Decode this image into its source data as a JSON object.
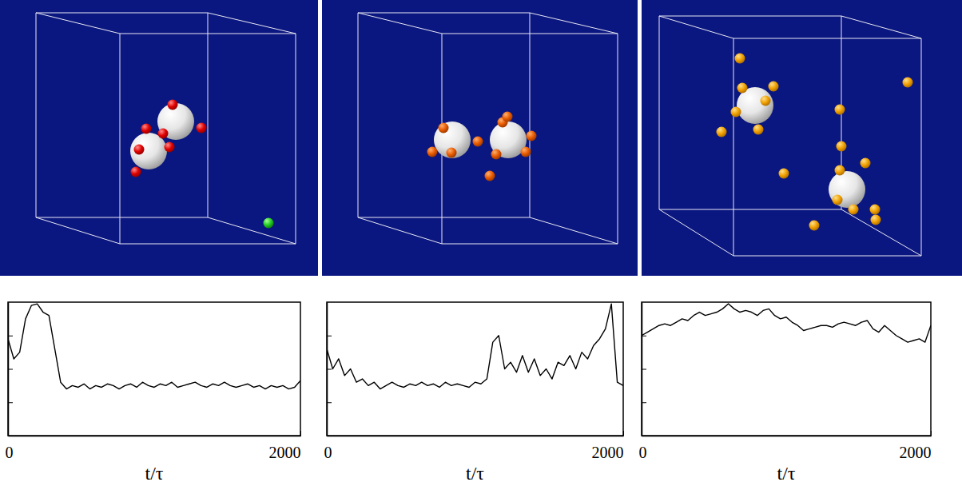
{
  "chart_data": [
    {
      "type": "line",
      "x_label": "t/τ",
      "x": [
        0,
        40,
        80,
        120,
        160,
        200,
        240,
        280,
        320,
        360,
        400,
        440,
        480,
        520,
        560,
        600,
        640,
        680,
        720,
        760,
        800,
        840,
        880,
        920,
        960,
        1000,
        1040,
        1080,
        1120,
        1160,
        1200,
        1240,
        1280,
        1320,
        1360,
        1400,
        1440,
        1480,
        1520,
        1560,
        1600,
        1640,
        1680,
        1720,
        1760,
        1800,
        1840,
        1880,
        1920,
        1960,
        2000
      ],
      "series": [
        {
          "color": "#000000",
          "values": [
            2.9,
            2.3,
            2.5,
            3.5,
            3.9,
            3.95,
            3.7,
            3.6,
            2.6,
            1.6,
            1.4,
            1.5,
            1.45,
            1.55,
            1.4,
            1.5,
            1.45,
            1.55,
            1.5,
            1.4,
            1.5,
            1.55,
            1.45,
            1.6,
            1.5,
            1.45,
            1.55,
            1.5,
            1.6,
            1.45,
            1.5,
            1.55,
            1.6,
            1.5,
            1.45,
            1.55,
            1.5,
            1.6,
            1.5,
            1.45,
            1.5,
            1.55,
            1.45,
            1.5,
            1.4,
            1.5,
            1.45,
            1.5,
            1.4,
            1.45,
            1.65
          ]
        }
      ],
      "xlim": [
        0,
        2000
      ],
      "xticks": [
        0,
        2000
      ],
      "ylim": [
        0,
        4
      ],
      "yticks": [
        1,
        2,
        3
      ],
      "tick_labels": "x"
    },
    {
      "type": "line",
      "x_label": "t/τ",
      "x": [
        0,
        40,
        80,
        120,
        160,
        200,
        240,
        280,
        320,
        360,
        400,
        440,
        480,
        520,
        560,
        600,
        640,
        680,
        720,
        760,
        800,
        840,
        880,
        920,
        960,
        1000,
        1040,
        1080,
        1120,
        1160,
        1200,
        1240,
        1280,
        1320,
        1360,
        1400,
        1440,
        1480,
        1520,
        1560,
        1600,
        1640,
        1680,
        1720,
        1760,
        1800,
        1840,
        1880,
        1920,
        1960,
        2000
      ],
      "series": [
        {
          "color": "#000000",
          "values": [
            2.6,
            2.0,
            2.3,
            1.8,
            2.0,
            1.6,
            1.7,
            1.5,
            1.6,
            1.4,
            1.5,
            1.6,
            1.5,
            1.45,
            1.55,
            1.5,
            1.6,
            1.5,
            1.55,
            1.45,
            1.6,
            1.5,
            1.55,
            1.5,
            1.45,
            1.6,
            1.55,
            1.7,
            2.8,
            3.0,
            2.0,
            2.2,
            1.9,
            2.4,
            1.9,
            2.3,
            1.8,
            2.0,
            1.7,
            2.2,
            2.1,
            2.4,
            2.0,
            2.5,
            2.3,
            2.7,
            2.9,
            3.2,
            3.95,
            1.6,
            1.5
          ]
        }
      ],
      "xlim": [
        0,
        2000
      ],
      "xticks": [
        0,
        2000
      ],
      "ylim": [
        0,
        4
      ],
      "yticks": [
        1,
        2,
        3
      ],
      "tick_labels": "x"
    },
    {
      "type": "line",
      "x_label": "t/τ",
      "x": [
        0,
        40,
        80,
        120,
        160,
        200,
        240,
        280,
        320,
        360,
        400,
        440,
        480,
        520,
        560,
        600,
        640,
        680,
        720,
        760,
        800,
        840,
        880,
        920,
        960,
        1000,
        1040,
        1080,
        1120,
        1160,
        1200,
        1240,
        1280,
        1320,
        1360,
        1400,
        1440,
        1480,
        1520,
        1560,
        1600,
        1640,
        1680,
        1720,
        1760,
        1800,
        1840,
        1880,
        1920,
        1960,
        2000
      ],
      "series": [
        {
          "color": "#000000",
          "values": [
            3.0,
            3.1,
            3.2,
            3.3,
            3.35,
            3.3,
            3.4,
            3.5,
            3.45,
            3.6,
            3.7,
            3.6,
            3.65,
            3.7,
            3.8,
            3.95,
            3.8,
            3.7,
            3.75,
            3.7,
            3.6,
            3.75,
            3.8,
            3.6,
            3.5,
            3.55,
            3.4,
            3.3,
            3.15,
            3.2,
            3.25,
            3.3,
            3.3,
            3.25,
            3.35,
            3.4,
            3.35,
            3.3,
            3.4,
            3.45,
            3.2,
            3.1,
            3.3,
            3.15,
            3.0,
            2.9,
            2.8,
            2.85,
            2.9,
            2.8,
            3.3
          ]
        }
      ],
      "xlim": [
        0,
        2000
      ],
      "xticks": [
        0,
        2000
      ],
      "ylim": [
        0,
        4
      ],
      "yticks": [
        1,
        2,
        3
      ],
      "tick_labels": "x"
    }
  ]
}
